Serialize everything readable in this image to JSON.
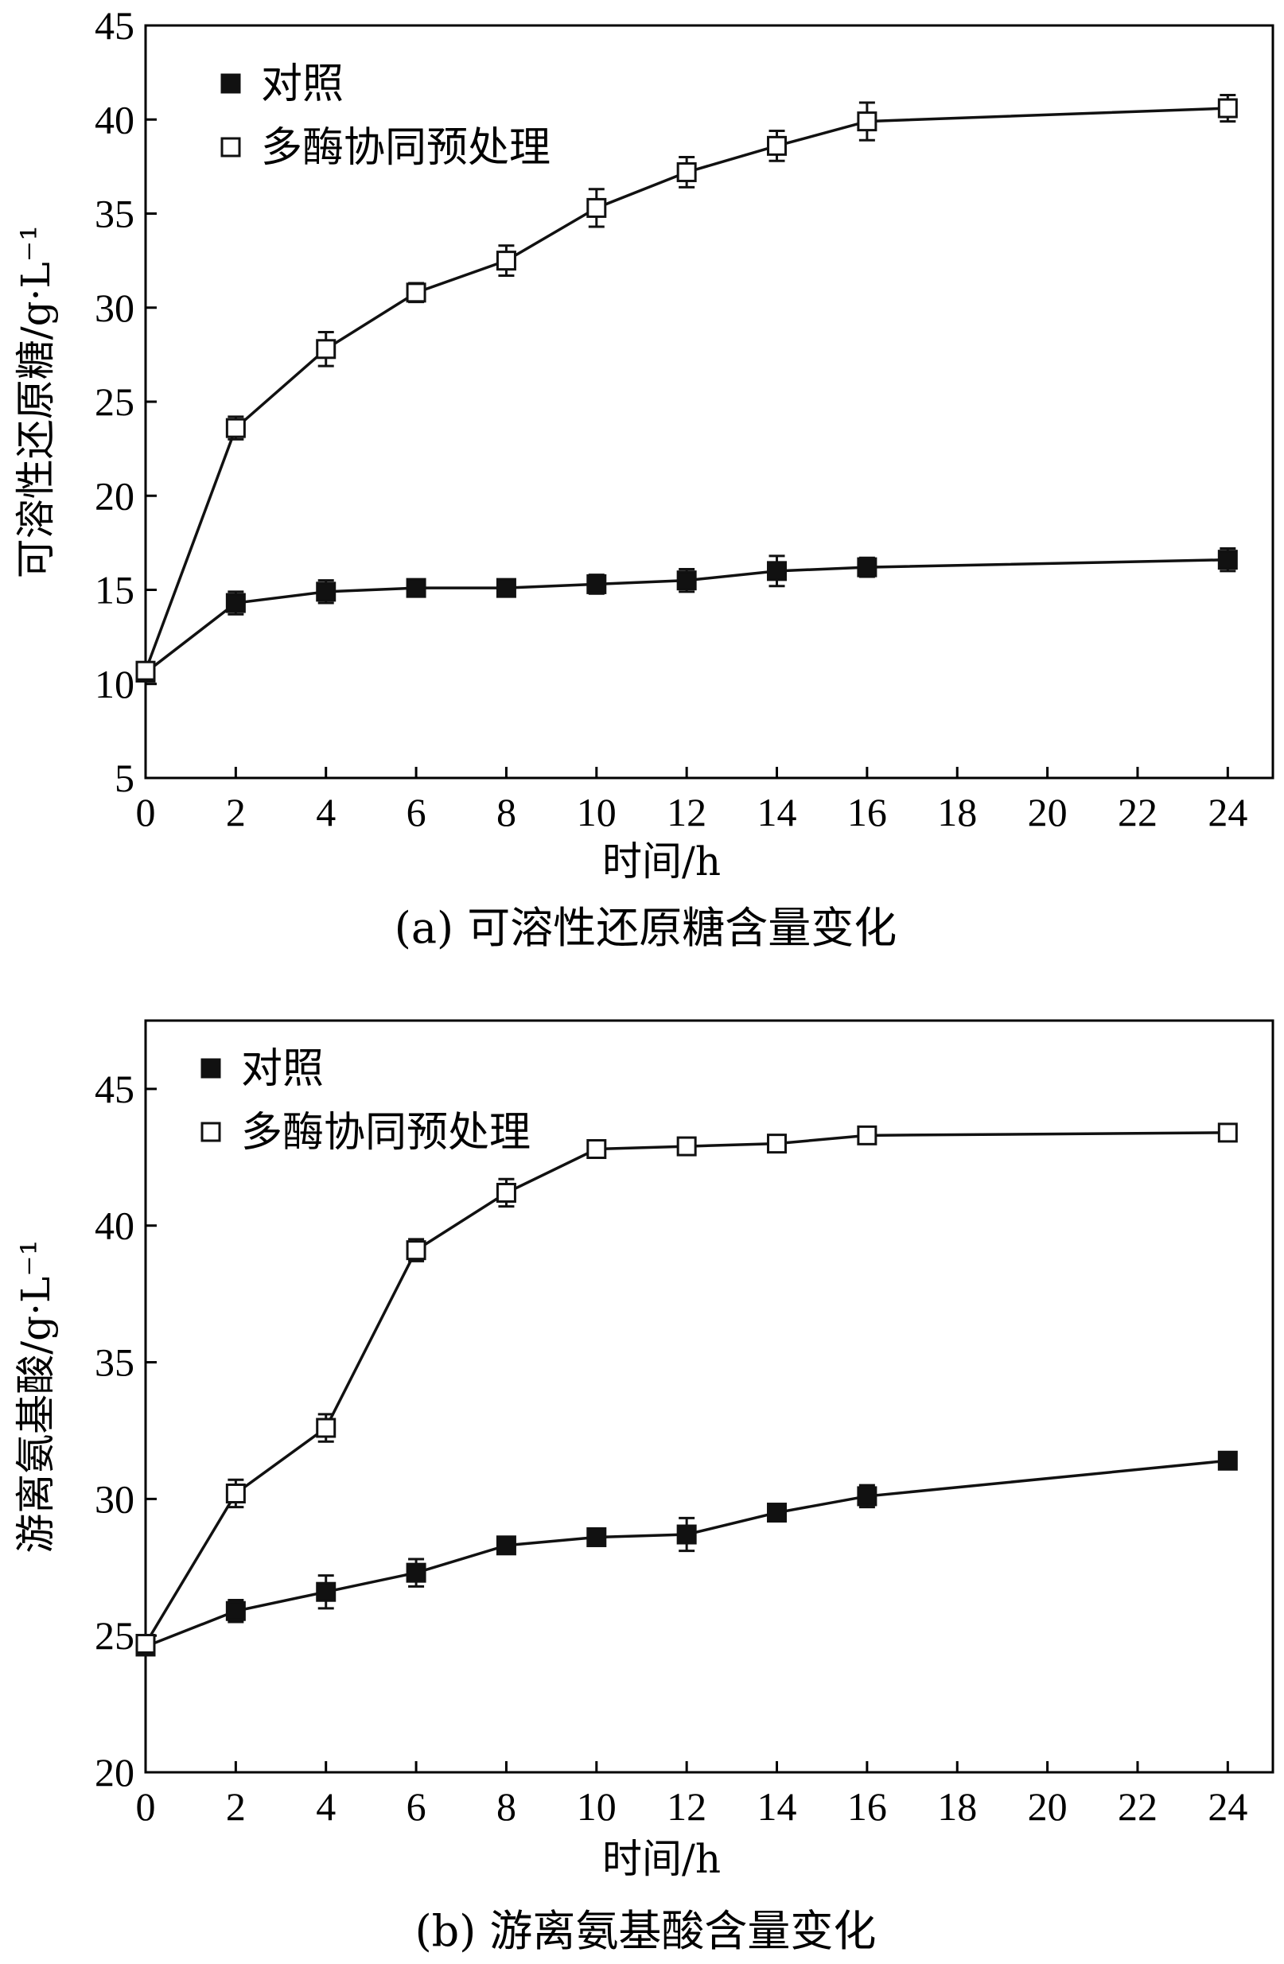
{
  "chart_data": [
    {
      "type": "line",
      "title": "(a) 可溶性还原糖含量变化",
      "xlabel": "时间/h",
      "ylabel": "可溶性还原糖/g·L⁻¹",
      "xlim": [
        0,
        25
      ],
      "ylim": [
        5,
        45
      ],
      "xticks": [
        0,
        2,
        4,
        6,
        8,
        10,
        12,
        14,
        16,
        18,
        20,
        22,
        24
      ],
      "yticks": [
        5,
        10,
        15,
        20,
        25,
        30,
        35,
        40,
        45
      ],
      "series": [
        {
          "name": "对照",
          "marker": "filled-square",
          "x": [
            0,
            2,
            4,
            6,
            8,
            10,
            12,
            14,
            16,
            24
          ],
          "y": [
            10.6,
            14.3,
            14.9,
            15.1,
            15.1,
            15.3,
            15.5,
            16.0,
            16.2,
            16.6
          ],
          "err": [
            0.4,
            0.6,
            0.6,
            0.4,
            0.4,
            0.5,
            0.6,
            0.8,
            0.5,
            0.6
          ]
        },
        {
          "name": "多酶协同预处理",
          "marker": "open-square",
          "x": [
            0,
            2,
            4,
            6,
            8,
            10,
            12,
            14,
            16,
            24
          ],
          "y": [
            10.7,
            23.6,
            27.8,
            30.8,
            32.5,
            35.3,
            37.2,
            38.6,
            39.9,
            40.6
          ],
          "err": [
            0.4,
            0.6,
            0.9,
            0.5,
            0.8,
            1.0,
            0.8,
            0.8,
            1.0,
            0.7
          ]
        }
      ]
    },
    {
      "type": "line",
      "title": "(b) 游离氨基酸含量变化",
      "xlabel": "时间/h",
      "ylabel": "游离氨基酸/g·L⁻¹",
      "xlim": [
        0,
        25
      ],
      "ylim": [
        20,
        47.5
      ],
      "xticks": [
        0,
        2,
        4,
        6,
        8,
        10,
        12,
        14,
        16,
        18,
        20,
        22,
        24
      ],
      "yticks": [
        20,
        25,
        30,
        35,
        40,
        45
      ],
      "series": [
        {
          "name": "对照",
          "marker": "filled-square",
          "x": [
            0,
            2,
            4,
            6,
            8,
            10,
            12,
            14,
            16,
            24
          ],
          "y": [
            24.6,
            25.9,
            26.6,
            27.3,
            28.3,
            28.6,
            28.7,
            29.5,
            30.1,
            31.4
          ],
          "err": [
            0.3,
            0.4,
            0.6,
            0.5,
            0.3,
            0.3,
            0.6,
            0.3,
            0.4,
            0.3
          ]
        },
        {
          "name": "多酶协同预处理",
          "marker": "open-square",
          "x": [
            0,
            2,
            4,
            6,
            8,
            10,
            12,
            14,
            16,
            24
          ],
          "y": [
            24.7,
            30.2,
            32.6,
            39.1,
            41.2,
            42.8,
            42.9,
            43.0,
            43.3,
            43.4
          ],
          "err": [
            0.3,
            0.5,
            0.5,
            0.4,
            0.5,
            0.3,
            0.3,
            0.3,
            0.2,
            0.3
          ]
        }
      ]
    }
  ]
}
